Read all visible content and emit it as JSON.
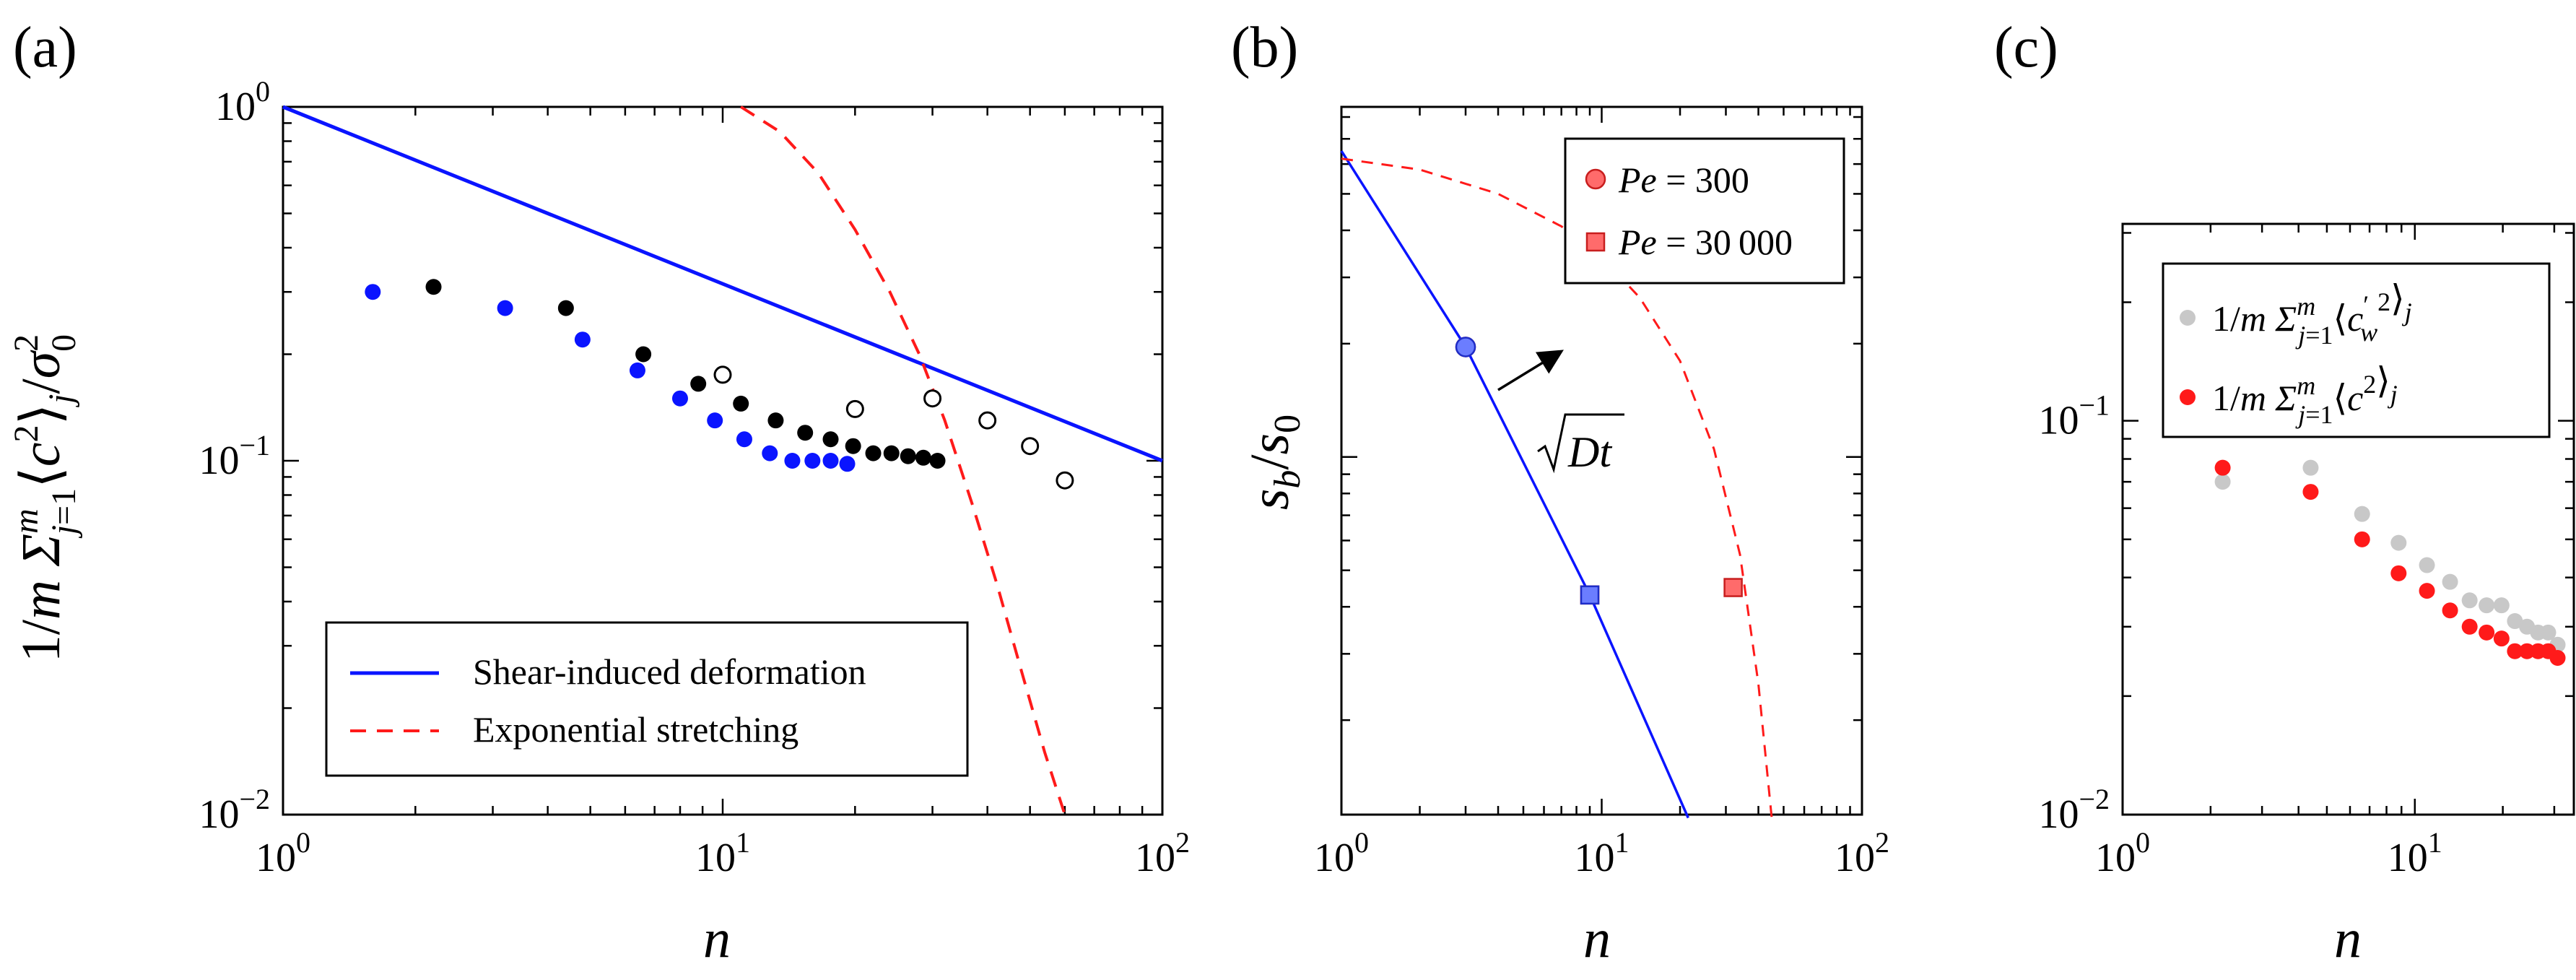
{
  "panels": {
    "a": {
      "label": "(a)"
    },
    "b": {
      "label": "(b)"
    },
    "c": {
      "label": "(c)"
    }
  },
  "chart_data": [
    {
      "type": "scatter",
      "id": "a",
      "xscale": "log",
      "yscale": "log",
      "xlim": [
        1,
        100
      ],
      "ylim": [
        0.01,
        1
      ],
      "xlabel": "n",
      "ylabel": "1/m Σ_{j=1}^{m} ⟨c²⟩_j / σ₀²",
      "xticks": [
        1,
        10,
        100
      ],
      "yticks": [
        0.01,
        0.1,
        1
      ],
      "grid": false,
      "legend_position": "bottom-left",
      "series": [
        {
          "marker": "filled-blue",
          "color": "#0a14ff",
          "x": [
            1.6,
            3.2,
            4.8,
            6.4,
            8.0,
            9.6,
            11.2,
            12.8,
            14.4,
            16.0,
            17.6,
            19.2
          ],
          "y": [
            0.3,
            0.27,
            0.22,
            0.18,
            0.15,
            0.13,
            0.115,
            0.105,
            0.1,
            0.1,
            0.1,
            0.098
          ]
        },
        {
          "marker": "filled-black",
          "color": "#000000",
          "x": [
            2.2,
            4.4,
            6.6,
            8.8,
            11.0,
            13.2,
            15.4,
            17.6,
            19.8,
            22.0,
            24.2,
            26.4,
            28.6,
            30.8
          ],
          "y": [
            0.31,
            0.27,
            0.2,
            0.165,
            0.145,
            0.13,
            0.12,
            0.115,
            0.11,
            0.105,
            0.105,
            0.103,
            0.102,
            0.1
          ]
        },
        {
          "marker": "open-black",
          "color": "#000000",
          "x": [
            10,
            20,
            30,
            40,
            50,
            60
          ],
          "y": [
            0.175,
            0.14,
            0.15,
            0.13,
            0.11,
            0.088
          ]
        },
        {
          "name": "Shear-induced deformation",
          "marker": "line-solid",
          "color": "#0a14ff",
          "x": [
            1,
            100
          ],
          "y": [
            1,
            0.1
          ]
        },
        {
          "name": "Exponential stretching",
          "marker": "line-dashed",
          "color": "#ff1a1a",
          "x": [
            11.0,
            13.5,
            16.5,
            20.0,
            24.0,
            28.0,
            32.0,
            37.0,
            42.0,
            48.0,
            54.0,
            60.0
          ],
          "y": [
            1.0,
            0.85,
            0.65,
            0.45,
            0.3,
            0.2,
            0.13,
            0.075,
            0.045,
            0.025,
            0.015,
            0.01
          ]
        }
      ]
    },
    {
      "type": "scatter",
      "id": "b",
      "xscale": "log",
      "yscale": "log",
      "xlim": [
        1,
        100
      ],
      "xlabel": "n",
      "ylabel": "s_b/s_0",
      "xticks": [
        1,
        10,
        100
      ],
      "grid": false,
      "legend_position": "top-right",
      "annotation": "√(Dt)",
      "series": [
        {
          "name": "Pe = 300",
          "marker": "circle",
          "color": "#ff6b6b",
          "x": [
            3,
            10
          ],
          "y": [
            0.196,
            0.34
          ]
        },
        {
          "name": "Pe = 30 000",
          "marker": "square",
          "color": "#ff6b6b",
          "x": [
            9,
            32
          ],
          "y": [
            0.043,
            0.045
          ]
        },
        {
          "marker": "line-solid",
          "color": "#0a14ff",
          "x": [
            1,
            3,
            9,
            21.5
          ],
          "y": [
            0.65,
            0.196,
            0.043,
            0.011
          ]
        },
        {
          "marker": "line-dashed",
          "color": "#ff1a1a",
          "x": [
            1,
            2,
            4,
            7,
            10,
            14,
            20,
            27,
            34,
            40,
            45
          ],
          "y": [
            0.62,
            0.58,
            0.5,
            0.41,
            0.34,
            0.265,
            0.18,
            0.105,
            0.055,
            0.025,
            0.011
          ]
        },
        {
          "marker": "circle-blue",
          "color": "#6b7dff",
          "x": [
            3
          ],
          "y": [
            0.196
          ]
        },
        {
          "marker": "square-blue",
          "color": "#6b7dff",
          "x": [
            9
          ],
          "y": [
            0.043
          ]
        }
      ]
    },
    {
      "type": "scatter",
      "id": "c",
      "xscale": "log",
      "yscale": "log",
      "xlim": [
        1,
        35
      ],
      "ylim": [
        0.01,
        1
      ],
      "xlabel": "n",
      "xticks": [
        1,
        10
      ],
      "yticks": [
        0.01,
        0.1
      ],
      "grid": false,
      "legend_position": "top-right",
      "series": [
        {
          "name": "1/m Σ_{j=1}^{m} ⟨c'_w²⟩_j",
          "marker": "filled-gray",
          "color": "#c8c8c8",
          "x": [
            2.2,
            4.4,
            6.6,
            8.8,
            11.0,
            13.2,
            15.4,
            17.6,
            19.8,
            22.0,
            24.2,
            26.4,
            28.6,
            30.8
          ],
          "y": [
            0.07,
            0.076,
            0.058,
            0.049,
            0.043,
            0.039,
            0.035,
            0.034,
            0.034,
            0.031,
            0.03,
            0.029,
            0.029,
            0.027
          ]
        },
        {
          "name": "1/m Σ_{j=1}^{m} ⟨c²⟩_j",
          "marker": "filled-red",
          "color": "#ff1a1a",
          "x": [
            2.2,
            4.4,
            6.6,
            8.8,
            11.0,
            13.2,
            15.4,
            17.6,
            19.8,
            22.0,
            24.2,
            26.4,
            28.6,
            30.8
          ],
          "y": [
            0.076,
            0.066,
            0.05,
            0.041,
            0.037,
            0.033,
            0.03,
            0.029,
            0.028,
            0.026,
            0.026,
            0.026,
            0.026,
            0.025
          ]
        }
      ]
    }
  ]
}
